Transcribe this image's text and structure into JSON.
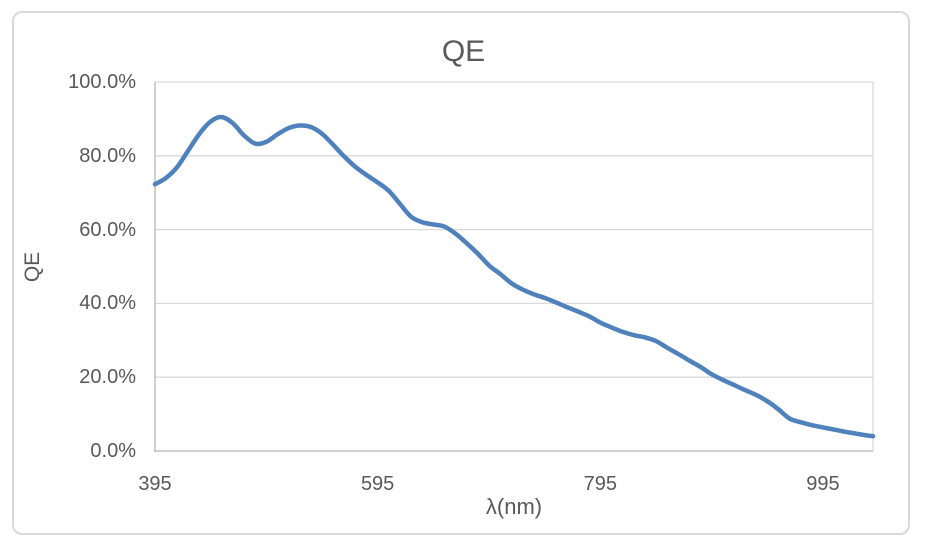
{
  "chart_data": {
    "type": "line",
    "title": "QE",
    "xlabel": "λ(nm)",
    "ylabel": "QE",
    "series_name": "QE",
    "x_unit": "nm",
    "y_unit": "percent",
    "xlim": [
      395,
      1040
    ],
    "ylim": [
      0,
      100
    ],
    "grid": "horizontal",
    "legend": "none",
    "smooth": true,
    "x": [
      395,
      405,
      415,
      425,
      435,
      445,
      455,
      465,
      475,
      485,
      495,
      505,
      515,
      525,
      535,
      545,
      555,
      565,
      575,
      585,
      595,
      605,
      615,
      625,
      635,
      645,
      655,
      665,
      675,
      685,
      695,
      705,
      715,
      725,
      735,
      745,
      755,
      765,
      775,
      785,
      795,
      805,
      815,
      825,
      835,
      845,
      855,
      865,
      875,
      885,
      895,
      905,
      915,
      925,
      935,
      945,
      955,
      965,
      975,
      985,
      995,
      1005,
      1015,
      1025,
      1035,
      1040
    ],
    "y": [
      72.3,
      74.0,
      77.0,
      81.5,
      86.0,
      89.3,
      90.5,
      88.8,
      85.5,
      83.3,
      83.8,
      85.8,
      87.5,
      88.2,
      87.8,
      86.0,
      83.0,
      79.8,
      77.0,
      74.8,
      72.8,
      70.5,
      67.0,
      63.5,
      62.0,
      61.4,
      60.8,
      58.9,
      56.3,
      53.5,
      50.3,
      48.0,
      45.5,
      43.8,
      42.5,
      41.5,
      40.3,
      39.0,
      37.8,
      36.5,
      34.8,
      33.5,
      32.3,
      31.4,
      30.8,
      29.8,
      28.0,
      26.3,
      24.5,
      22.8,
      20.8,
      19.3,
      17.9,
      16.5,
      15.2,
      13.5,
      11.3,
      8.8,
      7.8,
      7.0,
      6.4,
      5.8,
      5.2,
      4.7,
      4.2,
      4.0
    ],
    "x_ticks": {
      "values": [
        395,
        595,
        795,
        995
      ],
      "labels": [
        "395",
        "595",
        "795",
        "995"
      ]
    },
    "y_ticks": {
      "values": [
        0,
        20,
        40,
        60,
        80,
        100
      ],
      "labels": [
        "0.0%",
        "20.0%",
        "40.0%",
        "60.0%",
        "80.0%",
        "100.0%"
      ]
    },
    "colors": {
      "line": "#4F81BD",
      "gridline": "#D9D9D9",
      "axis_line": "#C0C0C0",
      "plot_border": "#D9D9D9",
      "text": "#595959",
      "chart_border": "#D9D9D9",
      "background": "#FFFFFF"
    }
  }
}
